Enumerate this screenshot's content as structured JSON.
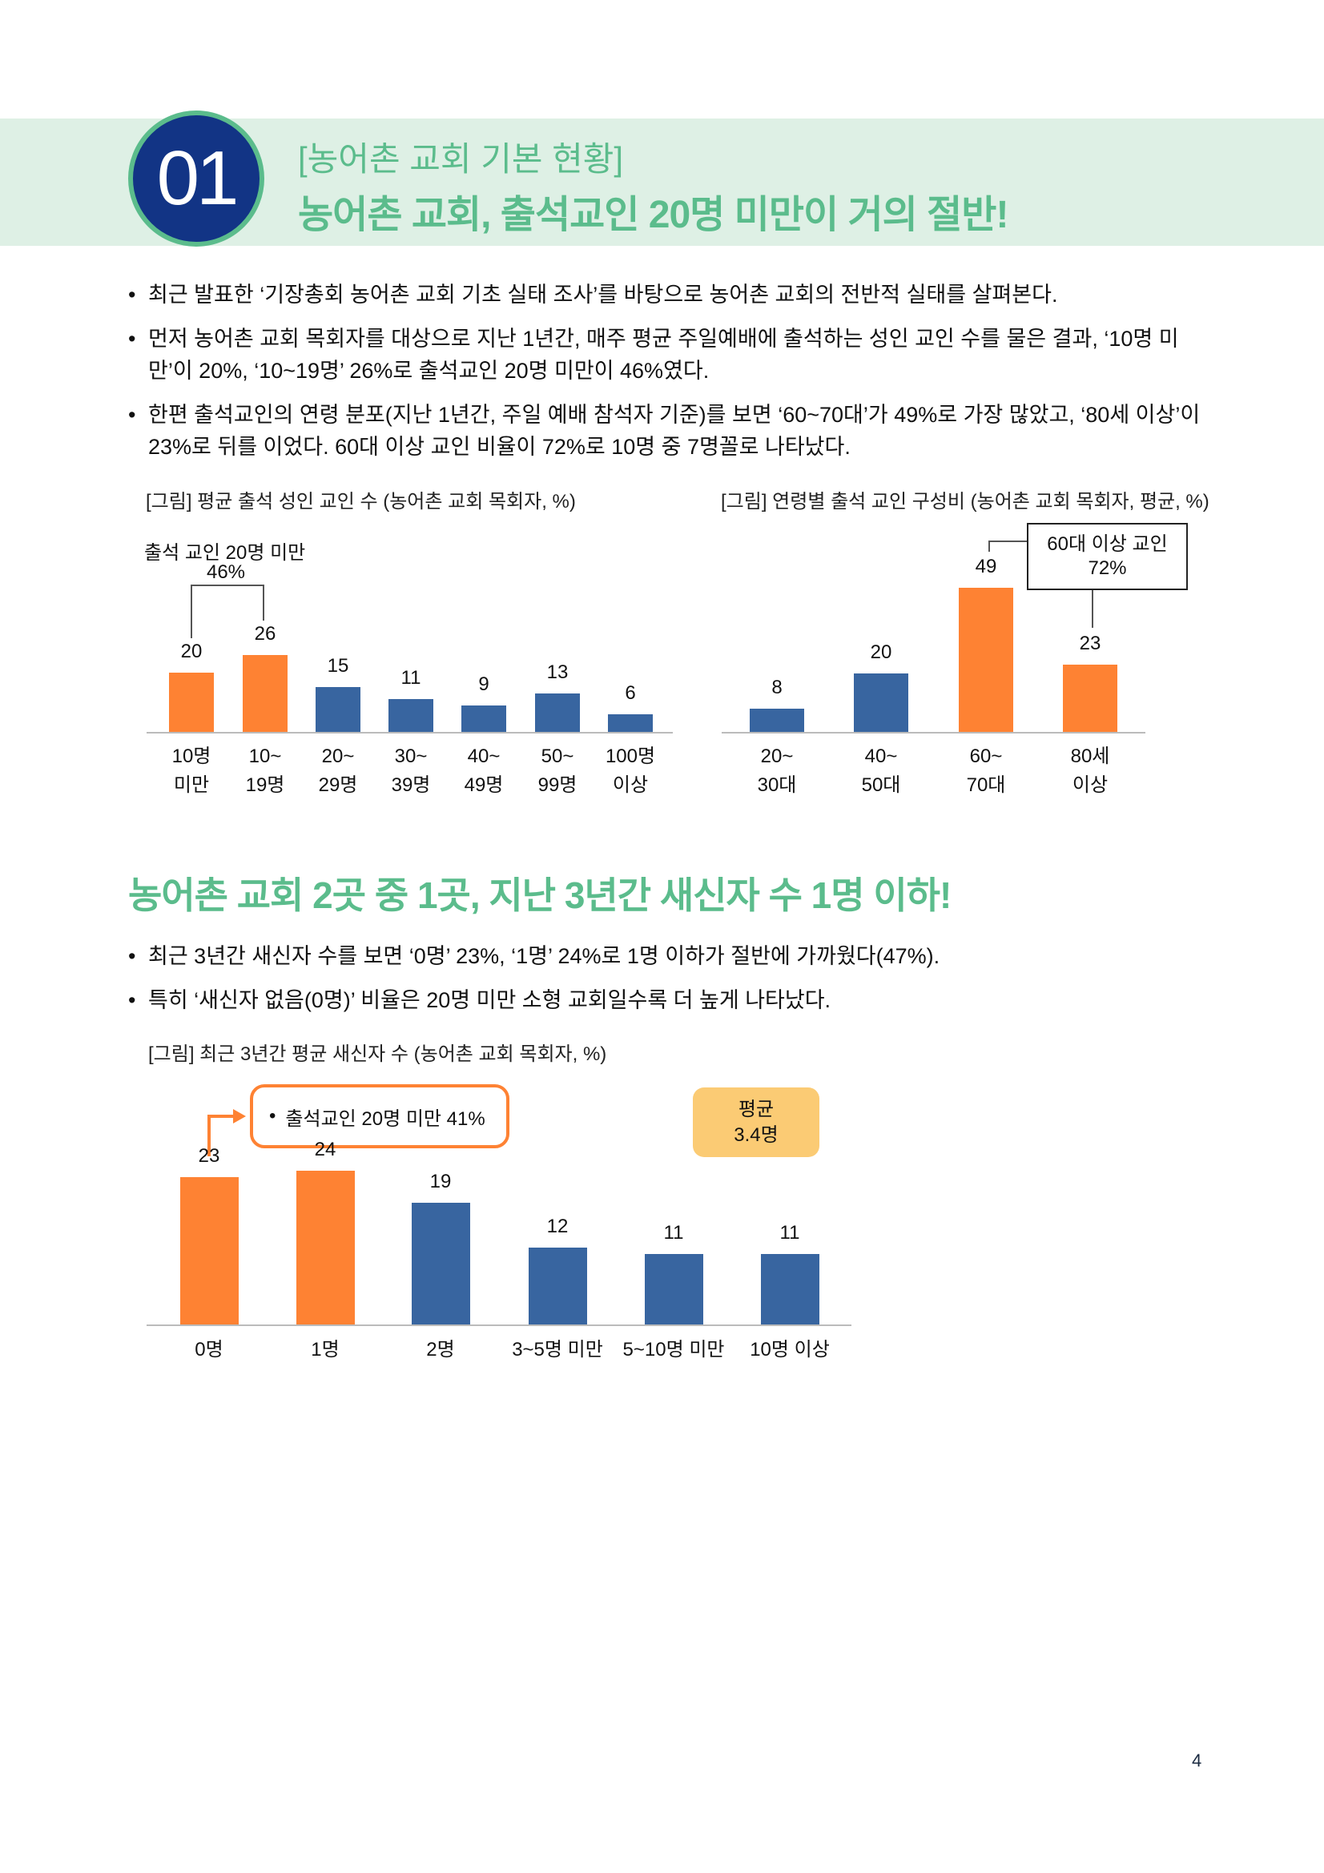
{
  "header": {
    "section_number": "01",
    "subtitle": "[농어촌 교회 기본 현황]",
    "title": "농어촌 교회, 출석교인 20명 미만이 거의 절반!"
  },
  "intro_bullets": [
    "최근 발표한 ‘기장총회 농어촌 교회 기초 실태 조사’를 바탕으로 농어촌 교회의 전반적 실태를 살펴본다.",
    "먼저 농어촌 교회 목회자를 대상으로 지난 1년간, 매주 평균 주일예배에 출석하는 성인 교인 수를 물은 결과, ‘10명 미만’이 20%, ‘10~19명’ 26%로 출석교인 20명 미만이 46%였다.",
    "한편 출석교인의 연령 분포(지난 1년간, 주일 예배 참석자 기준)를 보면 ‘60~70대’가 49%로 가장 많았고, ‘80세 이상’이 23%로 뒤를 이었다. 60대 이상 교인 비율이 72%로 10명 중 7명꼴로 나타났다."
  ],
  "section2": {
    "title": "농어촌 교회 2곳 중 1곳, 지난 3년간 새신자 수 1명 이하!",
    "bullets": [
      "최근 3년간 새신자 수를 보면 ‘0명’ 23%, ‘1명’ 24%로 1명 이하가 절반에 가까웠다(47%).",
      "특히 ‘새신자 없음(0명)’ 비율은 20명 미만 소형 교회일수록 더 높게 나타났다."
    ]
  },
  "colors": {
    "accent_green": "#5BBC8C",
    "band_green": "#DEF0E5",
    "circle_navy": "#123485",
    "bar_orange": "#FE8233",
    "bar_blue": "#3865A0",
    "avg_yellow": "#FBCB74"
  },
  "chart_data": [
    {
      "type": "bar",
      "title": "[그림] 평균 출석 성인 교인 수 (농어촌 교회 목회자, %)",
      "categories": [
        "10명 미만",
        "10~19명",
        "20~29명",
        "30~39명",
        "40~49명",
        "50~99명",
        "100명 이상"
      ],
      "category_lines": [
        [
          "10명",
          "미만"
        ],
        [
          "10~",
          "19명"
        ],
        [
          "20~",
          "29명"
        ],
        [
          "30~",
          "39명"
        ],
        [
          "40~",
          "49명"
        ],
        [
          "50~",
          "99명"
        ],
        [
          "100명",
          "이상"
        ]
      ],
      "values": [
        20,
        26,
        15,
        11,
        9,
        13,
        6
      ],
      "highlight": [
        true,
        true,
        false,
        false,
        false,
        false,
        false
      ],
      "annotation": {
        "line1": "출석 교인 20명 미만",
        "line2": "46%"
      },
      "xlabel": "",
      "ylabel": "%",
      "grid": false
    },
    {
      "type": "bar",
      "title": "[그림] 연령별 출석 교인 구성비 (농어촌 교회 목회자, 평균, %)",
      "categories": [
        "20~30대",
        "40~50대",
        "60~70대",
        "80세 이상"
      ],
      "category_lines": [
        [
          "20~",
          "30대"
        ],
        [
          "40~",
          "50대"
        ],
        [
          "60~",
          "70대"
        ],
        [
          "80세",
          "이상"
        ]
      ],
      "values": [
        8,
        20,
        49,
        23
      ],
      "highlight": [
        false,
        false,
        true,
        true
      ],
      "annotation": {
        "line1": "60대 이상 교인",
        "line2": "72%"
      },
      "xlabel": "",
      "ylabel": "%",
      "grid": false
    },
    {
      "type": "bar",
      "title": "[그림] 최근 3년간 평균 새신자 수 (농어촌 교회 목회자, %)",
      "categories": [
        "0명",
        "1명",
        "2명",
        "3~5명 미만",
        "5~10명 미만",
        "10명 이상"
      ],
      "values": [
        23,
        24,
        19,
        12,
        11,
        11
      ],
      "highlight": [
        true,
        true,
        false,
        false,
        false,
        false
      ],
      "annotation": {
        "callout": "출석교인 20명 미만 41%",
        "avg_label": "평균",
        "avg_value": "3.4명"
      },
      "xlabel": "",
      "ylabel": "%",
      "grid": false
    }
  ],
  "footer": {
    "page_number": "4"
  }
}
